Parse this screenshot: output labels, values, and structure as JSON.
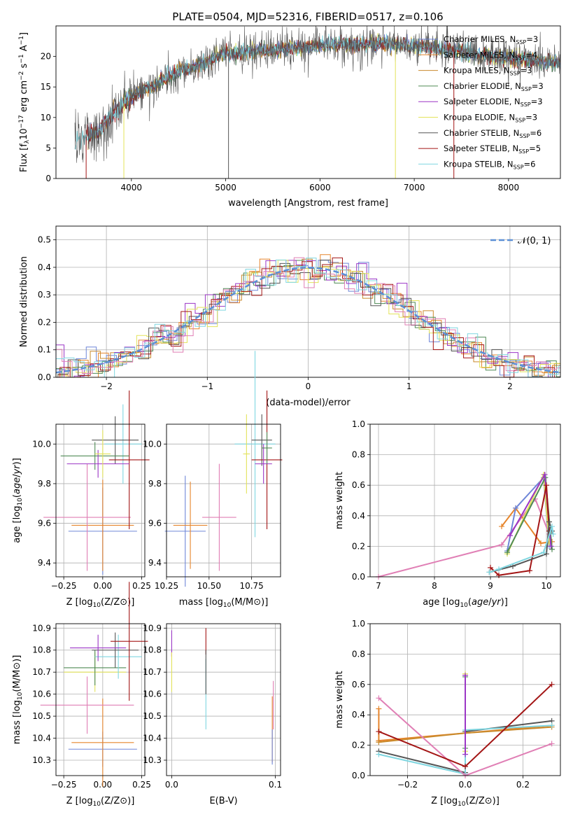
{
  "figure_title": "PLATE=0504, MJD=52316, FIBERID=0517, z=0.106",
  "colors": {
    "Chabrier MILES": "#6f86d8",
    "Salpeter MILES": "#e6852c",
    "Kroupa MILES": "#c98a2c",
    "Chabrier ELODIE": "#4f8a55",
    "Salpeter ELODIE": "#9b36c6",
    "Kroupa ELODIE": "#e3e35a",
    "Chabrier STELIB": "#555555",
    "Salpeter STELIB": "#a31515",
    "Kroupa STELIB": "#7fd6e0",
    "gauss": "#5b8fd6",
    "pink": "#e07fb5"
  },
  "chart_data": [
    {
      "id": "spectrum",
      "type": "line",
      "title": "PLATE=0504, MJD=52316, FIBERID=0517, z=0.106",
      "xlabel": "wavelength [Angstrom, rest frame]",
      "ylabel": "Flux [f_λ10^-17 erg cm^-2 s^-1 A^-1]",
      "xlim": [
        3200,
        8550
      ],
      "ylim": [
        0,
        25
      ],
      "xticks": [
        4000,
        5000,
        6000,
        7000,
        8000
      ],
      "yticks": [
        0,
        5,
        10,
        15,
        20
      ],
      "legend_position": "right",
      "series": [
        {
          "name": "Chabrier MILES",
          "label_html": "Chabrier MILES, N<tspan dy='3' font-size='8'>SSP</tspan><tspan dy='-3'>=3</tspan>"
        },
        {
          "name": "Salpeter MILES",
          "label_html": "Salpeter MILES, N<tspan dy='3' font-size='8'>SSP</tspan><tspan dy='-3'>=4</tspan>"
        },
        {
          "name": "Kroupa MILES",
          "label_html": "Kroupa MILES, N<tspan dy='3' font-size='8'>SSP</tspan><tspan dy='-3'>=3</tspan>"
        },
        {
          "name": "Chabrier ELODIE",
          "label_html": "Chabrier ELODIE, N<tspan dy='3' font-size='8'>SSP</tspan><tspan dy='-3'>=3</tspan>"
        },
        {
          "name": "Salpeter ELODIE",
          "label_html": "Salpeter ELODIE, N<tspan dy='3' font-size='8'>SSP</tspan><tspan dy='-3'>=3</tspan>"
        },
        {
          "name": "Kroupa ELODIE",
          "label_html": "Kroupa ELODIE, N<tspan dy='3' font-size='8'>SSP</tspan><tspan dy='-3'>=3</tspan>"
        },
        {
          "name": "Chabrier STELIB",
          "label_html": "Chabrier STELIB, N<tspan dy='3' font-size='8'>SSP</tspan><tspan dy='-3'>=6</tspan>"
        },
        {
          "name": "Salpeter STELIB",
          "label_html": "Salpeter STELIB, N<tspan dy='3' font-size='8'>SSP</tspan><tspan dy='-3'>=5</tspan>"
        },
        {
          "name": "Kroupa STELIB",
          "label_html": "Kroupa STELIB, N<tspan dy='3' font-size='8'>SSP</tspan><tspan dy='-3'>=6</tspan>"
        }
      ],
      "continuum": [
        [
          3400,
          6
        ],
        [
          3550,
          7
        ],
        [
          3700,
          8.5
        ],
        [
          3800,
          10.5
        ],
        [
          3900,
          12
        ],
        [
          4000,
          13.5
        ],
        [
          4200,
          15
        ],
        [
          4500,
          17.5
        ],
        [
          4800,
          19
        ],
        [
          5000,
          20.5
        ],
        [
          5400,
          21
        ],
        [
          5800,
          21.5
        ],
        [
          6200,
          22
        ],
        [
          6600,
          22
        ],
        [
          7000,
          21.8
        ],
        [
          7400,
          21
        ],
        [
          7800,
          20
        ],
        [
          8200,
          19.5
        ],
        [
          8550,
          19
        ]
      ]
    },
    {
      "id": "residuals",
      "type": "histogram",
      "xlabel": "(data-model)/error",
      "ylabel": "Normed distribution",
      "xlim": [
        -2.5,
        2.5
      ],
      "ylim": [
        0,
        0.55
      ],
      "xticks": [
        -2,
        -1,
        0,
        1,
        2
      ],
      "xtick_labels": [
        "−2",
        "−1",
        "0",
        "1",
        "2"
      ],
      "yticks": [
        0.0,
        0.1,
        0.2,
        0.3,
        0.4,
        0.5
      ],
      "legend": "𝒩(0, 1)",
      "legend_position": "top-right",
      "grid": true
    },
    {
      "id": "age-vs-Z",
      "type": "errorbar",
      "xlabel": "Z [log10(Z/Z⊙)]",
      "ylabel": "age [log10(age/yr)]",
      "xlim": [
        -0.3,
        0.27
      ],
      "ylim": [
        9.33,
        10.1
      ],
      "xticks": [
        -0.25,
        0.0,
        0.25
      ],
      "xtick_labels": [
        "−0.25",
        "0.00",
        "0.25"
      ],
      "yticks": [
        9.4,
        9.6,
        9.8,
        10.0
      ],
      "points": [
        {
          "s": "Chabrier MILES",
          "x": 0.0,
          "xerr": 0.22,
          "y": 9.56,
          "yerr": 0.22
        },
        {
          "s": "Salpeter MILES",
          "x": 0.0,
          "xerr": 0.2,
          "y": 9.59,
          "yerr": 0.23
        },
        {
          "s": "pink",
          "x": -0.1,
          "xerr": 0.28,
          "y": 9.63,
          "yerr": 0.27
        },
        {
          "s": "Kroupa STELIB",
          "x": 0.13,
          "xerr": 0.12,
          "y": 10.0,
          "yerr": 0.2
        },
        {
          "s": "Chabrier STELIB",
          "x": 0.08,
          "xerr": 0.15,
          "y": 10.02,
          "yerr": 0.12
        },
        {
          "s": "Salpeter STELIB",
          "x": 0.17,
          "xerr": 0.13,
          "y": 9.92,
          "yerr": 0.35
        },
        {
          "s": "Chabrier ELODIE",
          "x": -0.05,
          "xerr": 0.22,
          "y": 9.94,
          "yerr": 0.07
        },
        {
          "s": "Salpeter ELODIE",
          "x": -0.03,
          "xerr": 0.2,
          "y": 9.9,
          "yerr": 0.07
        },
        {
          "s": "Kroupa ELODIE",
          "x": 0.0,
          "xerr": 0.05,
          "y": 9.95,
          "yerr": 0.12
        }
      ]
    },
    {
      "id": "age-vs-mass",
      "type": "errorbar",
      "xlabel": "mass [log10(M/M⊙)]",
      "ylabel": "",
      "xlim": [
        10.25,
        10.92
      ],
      "ylim": [
        9.33,
        10.1
      ],
      "xticks": [
        10.25,
        10.5,
        10.75
      ],
      "xtick_labels": [
        "10.25",
        "10.50",
        "10.75"
      ],
      "yticks": [
        9.4,
        9.6,
        9.8,
        10.0
      ],
      "points": [
        {
          "s": "Chabrier MILES",
          "x": 10.36,
          "xerr": 0.12,
          "y": 9.56,
          "yerr": 0.28
        },
        {
          "s": "Salpeter MILES",
          "x": 10.39,
          "xerr": 0.1,
          "y": 9.59,
          "yerr": 0.22
        },
        {
          "s": "pink",
          "x": 10.56,
          "xerr": 0.1,
          "y": 9.63,
          "yerr": 0.27
        },
        {
          "s": "Kroupa STELIB",
          "x": 10.77,
          "xerr": 0.12,
          "y": 10.0,
          "yerr": 0.47
        },
        {
          "s": "Chabrier STELIB",
          "x": 10.81,
          "xerr": 0.06,
          "y": 10.02,
          "yerr": 0.13
        },
        {
          "s": "Salpeter STELIB",
          "x": 10.84,
          "xerr": 0.09,
          "y": 9.92,
          "yerr": 0.35
        },
        {
          "s": "Salpeter ELODIE",
          "x": 10.82,
          "xerr": 0.05,
          "y": 9.9,
          "yerr": 0.1
        },
        {
          "s": "Kroupa ELODIE",
          "x": 10.72,
          "xerr": 0.02,
          "y": 9.95,
          "yerr": 0.2
        },
        {
          "s": "Chabrier ELODIE",
          "x": 10.84,
          "xerr": 0.03,
          "y": 9.98,
          "yerr": 0.08
        }
      ]
    },
    {
      "id": "weight-vs-age",
      "type": "line",
      "xlabel": "age [log10(age/yr)]",
      "ylabel": "mass weight",
      "xlim": [
        6.85,
        10.25
      ],
      "ylim": [
        0,
        1
      ],
      "xticks": [
        7,
        8,
        9,
        10
      ],
      "yticks": [
        0.0,
        0.2,
        0.4,
        0.6,
        0.8,
        1.0
      ],
      "series": [
        {
          "s": "pink",
          "points": [
            [
              7.0,
              0.0
            ],
            [
              9.2,
              0.21
            ],
            [
              9.8,
              0.51
            ],
            [
              10.05,
              0.28
            ]
          ]
        },
        {
          "s": "Salpeter MILES",
          "points": [
            [
              9.2,
              0.33
            ],
            [
              9.45,
              0.45
            ],
            [
              9.9,
              0.22
            ],
            [
              10.1,
              0.23
            ]
          ]
        },
        {
          "s": "Chabrier MILES",
          "points": [
            [
              9.3,
              0.17
            ],
            [
              9.45,
              0.45
            ],
            [
              9.95,
              0.65
            ],
            [
              10.05,
              0.2
            ]
          ]
        },
        {
          "s": "Kroupa ELODIE",
          "points": [
            [
              9.3,
              0.15
            ],
            [
              9.95,
              0.67
            ],
            [
              10.05,
              0.22
            ]
          ]
        },
        {
          "s": "Chabrier ELODIE",
          "points": [
            [
              9.3,
              0.16
            ],
            [
              9.98,
              0.65
            ],
            [
              10.1,
              0.18
            ]
          ]
        },
        {
          "s": "Salpeter ELODIE",
          "points": [
            [
              9.35,
              0.27
            ],
            [
              9.97,
              0.67
            ],
            [
              10.08,
              0.2
            ]
          ]
        },
        {
          "s": "Salpeter STELIB",
          "points": [
            [
              9.0,
              0.06
            ],
            [
              9.15,
              0.01
            ],
            [
              9.7,
              0.04
            ],
            [
              10.0,
              0.6
            ],
            [
              10.05,
              0.3
            ]
          ]
        },
        {
          "s": "Chabrier STELIB",
          "points": [
            [
              8.98,
              0.03
            ],
            [
              9.4,
              0.07
            ],
            [
              10.0,
              0.15
            ],
            [
              10.05,
              0.36
            ],
            [
              10.1,
              0.3
            ]
          ]
        },
        {
          "s": "Kroupa STELIB",
          "points": [
            [
              8.98,
              0.03
            ],
            [
              9.15,
              0.05
            ],
            [
              9.95,
              0.16
            ],
            [
              10.1,
              0.33
            ],
            [
              10.12,
              0.28
            ]
          ]
        }
      ]
    },
    {
      "id": "mass-vs-Z",
      "type": "errorbar",
      "xlabel": "Z [log10(Z/Z⊙)]",
      "ylabel": "mass [log10(M/M⊙)]",
      "xlim": [
        -0.3,
        0.27
      ],
      "ylim": [
        10.23,
        10.92
      ],
      "xticks": [
        -0.25,
        0.0,
        0.25
      ],
      "xtick_labels": [
        "−0.25",
        "0.00",
        "0.25"
      ],
      "yticks": [
        10.3,
        10.4,
        10.5,
        10.6,
        10.7,
        10.8,
        10.9
      ],
      "points": [
        {
          "s": "Chabrier MILES",
          "x": 0.0,
          "xerr": 0.22,
          "y": 10.35,
          "yerr": 0.08
        },
        {
          "s": "Salpeter MILES",
          "x": 0.0,
          "xerr": 0.2,
          "y": 10.38,
          "yerr": 0.2
        },
        {
          "s": "pink",
          "x": -0.1,
          "xerr": 0.3,
          "y": 10.55,
          "yerr": 0.13
        },
        {
          "s": "Kroupa ELODIE",
          "x": -0.05,
          "xerr": 0.2,
          "y": 10.7,
          "yerr": 0.09
        },
        {
          "s": "Chabrier ELODIE",
          "x": -0.05,
          "xerr": 0.2,
          "y": 10.72,
          "yerr": 0.08
        },
        {
          "s": "Kroupa STELIB",
          "x": 0.1,
          "xerr": 0.15,
          "y": 10.77,
          "yerr": 0.1
        },
        {
          "s": "Chabrier STELIB",
          "x": 0.08,
          "xerr": 0.15,
          "y": 10.8,
          "yerr": 0.08
        },
        {
          "s": "Salpeter ELODIE",
          "x": -0.03,
          "xerr": 0.18,
          "y": 10.81,
          "yerr": 0.06
        },
        {
          "s": "Salpeter STELIB",
          "x": 0.17,
          "xerr": 0.12,
          "y": 10.84,
          "yerr": 0.27
        }
      ]
    },
    {
      "id": "mass-vs-ebv",
      "type": "errorbar",
      "xlabel": "E(B-V)",
      "ylabel": "",
      "xlim": [
        -0.005,
        0.105
      ],
      "ylim": [
        10.23,
        10.92
      ],
      "xticks": [
        0.0,
        0.1
      ],
      "xtick_labels": [
        "0.0",
        "0.1"
      ],
      "yticks": [
        10.3,
        10.4,
        10.5,
        10.6,
        10.7,
        10.8,
        10.9
      ],
      "points": [
        {
          "s": "Salpeter ELODIE",
          "x": 0.0,
          "xerr": 0.0,
          "y": 10.83,
          "yerr": 0.06
        },
        {
          "s": "Kroupa ELODIE",
          "x": 0.0,
          "xerr": 0.0,
          "y": 10.7,
          "yerr": 0.09
        },
        {
          "s": "Salpeter STELIB",
          "x": 0.033,
          "xerr": 0.0,
          "y": 10.84,
          "yerr": 0.06
        },
        {
          "s": "Kroupa STELIB",
          "x": 0.033,
          "xerr": 0.0,
          "y": 10.6,
          "yerr": 0.16
        },
        {
          "s": "Chabrier STELIB",
          "x": 0.033,
          "xerr": 0.0,
          "y": 10.7,
          "yerr": 0.1
        },
        {
          "s": "pink",
          "x": 0.098,
          "xerr": 0.0,
          "y": 10.55,
          "yerr": 0.11
        },
        {
          "s": "Salpeter MILES",
          "x": 0.097,
          "xerr": 0.0,
          "y": 10.44,
          "yerr": 0.15
        },
        {
          "s": "Chabrier MILES",
          "x": 0.097,
          "xerr": 0.0,
          "y": 10.36,
          "yerr": 0.08
        }
      ]
    },
    {
      "id": "weight-vs-Z",
      "type": "line",
      "xlabel": "Z [log10(Z/Z⊙)]",
      "ylabel": "mass weight",
      "xlim": [
        -0.33,
        0.33
      ],
      "ylim": [
        0,
        1
      ],
      "xticks": [
        -0.2,
        0.0,
        0.2
      ],
      "xtick_labels": [
        "−0.2",
        "0.0",
        "0.2"
      ],
      "yticks": [
        0.0,
        0.2,
        0.4,
        0.6,
        0.8,
        1.0
      ],
      "series": [
        {
          "s": "Salpeter MILES",
          "points": [
            [
              -0.3,
              0.44
            ],
            [
              -0.3,
              0.23
            ],
            [
              0.0,
              0.28
            ],
            [
              0.3,
              0.33
            ]
          ]
        },
        {
          "s": "Kroupa MILES",
          "points": [
            [
              -0.3,
              0.22
            ],
            [
              0.0,
              0.28
            ],
            [
              0.3,
              0.32
            ]
          ]
        },
        {
          "s": "Chabrier STELIB",
          "points": [
            [
              -0.3,
              0.16
            ],
            [
              0.0,
              0.02
            ],
            [
              0.0,
              0.29
            ],
            [
              0.3,
              0.36
            ]
          ]
        },
        {
          "s": "Kroupa STELIB",
          "points": [
            [
              -0.3,
              0.14
            ],
            [
              0.0,
              0.01
            ],
            [
              0.0,
              0.3
            ],
            [
              0.3,
              0.33
            ]
          ]
        },
        {
          "s": "pink",
          "points": [
            [
              -0.3,
              0.51
            ],
            [
              0.0,
              0.0
            ],
            [
              0.3,
              0.21
            ]
          ]
        },
        {
          "s": "Salpeter STELIB",
          "points": [
            [
              -0.3,
              0.29
            ],
            [
              0.0,
              0.06
            ],
            [
              0.3,
              0.6
            ]
          ]
        },
        {
          "s": "Kroupa ELODIE",
          "points": [
            [
              0.0,
              0.67
            ],
            [
              0.0,
              0.16
            ]
          ]
        },
        {
          "s": "Chabrier ELODIE",
          "points": [
            [
              0.0,
              0.65
            ],
            [
              0.0,
              0.18
            ]
          ]
        },
        {
          "s": "Salpeter ELODIE",
          "points": [
            [
              0.0,
              0.66
            ],
            [
              0.0,
              0.14
            ]
          ]
        }
      ]
    }
  ]
}
